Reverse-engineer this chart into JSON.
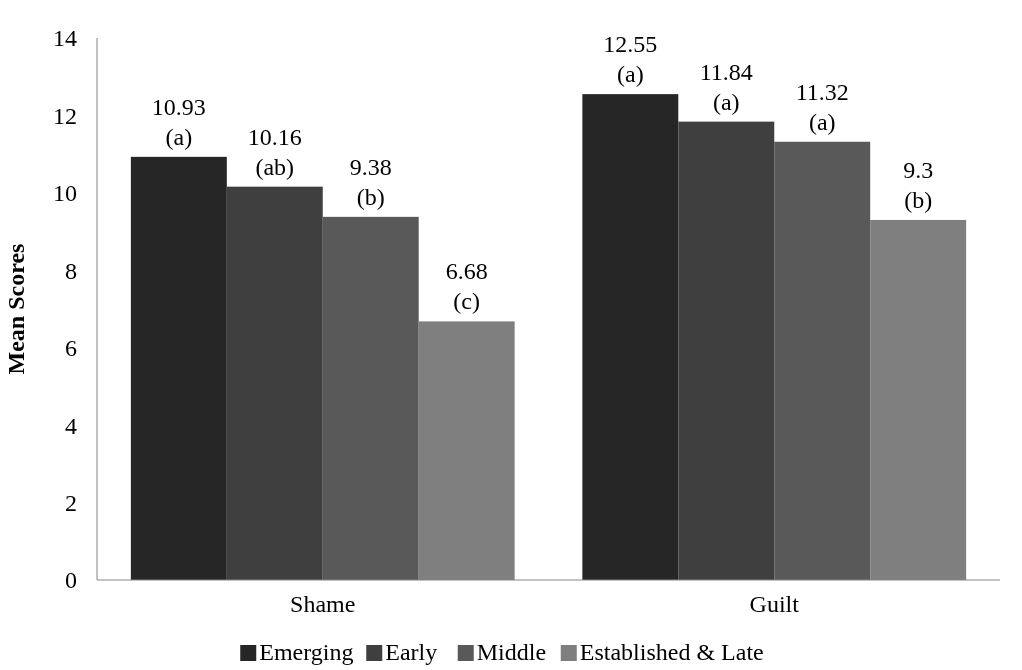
{
  "chart_data": {
    "type": "bar",
    "ylabel": "Mean Scores",
    "categories": [
      "Shame",
      "Guilt"
    ],
    "series": [
      {
        "name": "Emerging",
        "color": "#262626",
        "values": [
          10.93,
          12.55
        ],
        "value_labels": [
          "10.93\n(a)",
          "12.55\n(a)"
        ]
      },
      {
        "name": "Early",
        "color": "#3f3f3f",
        "values": [
          10.16,
          11.84
        ],
        "value_labels": [
          "10.16\n(ab)",
          "11.84\n(a)"
        ]
      },
      {
        "name": "Middle",
        "color": "#595959",
        "values": [
          9.38,
          11.32
        ],
        "value_labels": [
          "9.38\n(b)",
          "11.32\n(a)"
        ]
      },
      {
        "name": "Established & Late",
        "color": "#7f7f7f",
        "values": [
          6.68,
          9.3
        ],
        "value_labels": [
          "6.68\n(c)",
          "9.3\n(b)"
        ]
      }
    ],
    "ylim": [
      0,
      14
    ],
    "yticks": [
      0,
      2,
      4,
      6,
      8,
      10,
      12,
      14
    ],
    "grid": false,
    "legend": "bottom"
  }
}
